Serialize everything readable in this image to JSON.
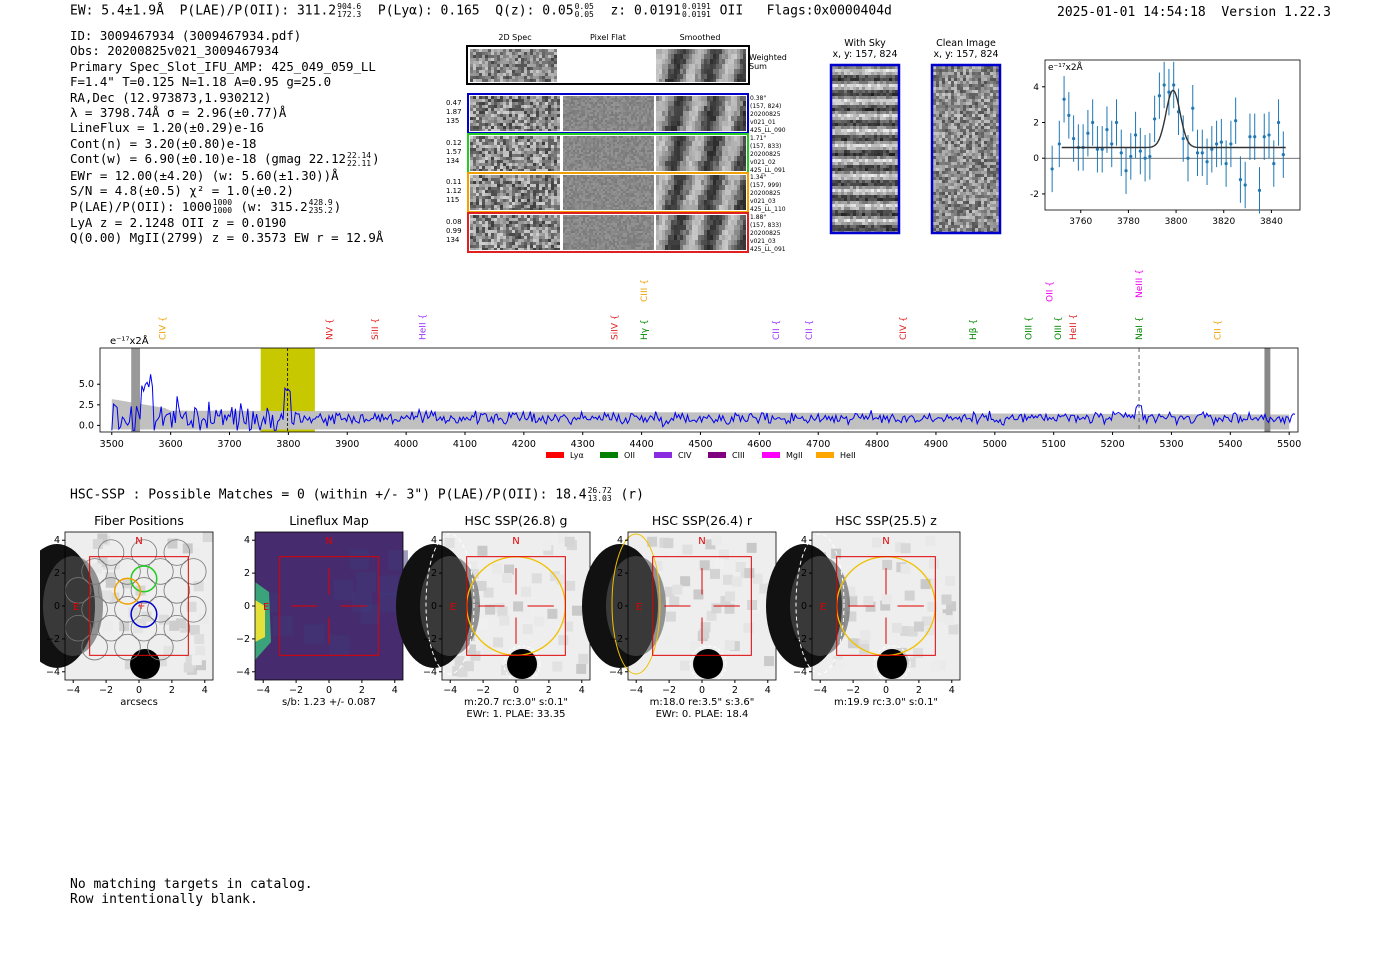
{
  "header": {
    "ew": "EW: 5.4±1.9Å",
    "plae_label": "P(LAE)/P(OII): 311.2",
    "plae_hi": "904.6",
    "plae_lo": "172.3",
    "plya": "P(Lyα): 0.165",
    "qz_label": "Q(z): 0.05",
    "qz_hi": "0.05",
    "qz_lo": "0.05",
    "z_label": "z: 0.0191",
    "z_hi": "0.0191",
    "z_lo": "0.0191",
    "z_line": "OII",
    "flags": "Flags:0x0000404d",
    "datetime": "2025-01-01 14:54:18",
    "version": "Version 1.22.3"
  },
  "info": {
    "id": "ID: 3009467934 (3009467934.pdf)",
    "obs": "Obs: 20200825v021_3009467934",
    "primary": "Primary Spec_Slot_IFU_AMP: 425_049_059_LL",
    "fit": "F=1.4\"  T=0.125  N=1.18  A=0.95  g=25.0",
    "radec": "RA,Dec (12.973873,1.930212)",
    "lambda": "λ = 3798.74Å  σ = 2.96(±0.77)Å",
    "lineflux": "LineFlux = 1.20(±0.29)e-16",
    "contn": "Cont(n) = 3.20(±0.80)e-18",
    "contw": "Cont(w) = 6.90(±0.10)e-18 (gmag 22.12",
    "gmag_hi": "22.14",
    "gmag_lo": "22.11",
    "ewr": "EWr = 12.00(±4.20) (w: 5.60(±1.30))Å",
    "sn": "S/N = 4.8(±0.5)  χ² = 1.0(±0.2)",
    "plae": "P(LAE)/P(OII): 1000",
    "plae_hi": "1000",
    "plae_lo": "1000",
    "plae_w": "(w: 315.2",
    "plae_w_hi": "428.9",
    "plae_w_lo": "235.2",
    "lya": "LyA z = 2.1248  OII z = 0.0190",
    "q": "Q(0.00) MgII(2799) z = 0.3573  EW r = 12.9Å"
  },
  "cutouts": {
    "col_2d": "2D Spec",
    "col_flat": "Pixel Flat",
    "col_smooth": "Smoothed",
    "weighted": "Weighted Sum",
    "rows": [
      {
        "left": [
          "0.47",
          "1.87",
          "135"
        ],
        "right": [
          "0.38\"",
          "(157, 824)",
          "20200825",
          "v021_01",
          "425_LL_090"
        ],
        "color": "#0000cc"
      },
      {
        "left": [
          "0.12",
          "1.57",
          "134"
        ],
        "right": [
          "1.71\"",
          "(157, 833)",
          "20200825",
          "v021_02",
          "425_LL_091"
        ],
        "color": "#22cc22"
      },
      {
        "left": [
          "0.11",
          "1.12",
          "115"
        ],
        "right": [
          "1.34\"",
          "(157, 999)",
          "20200825",
          "v021_03",
          "425_LL_110"
        ],
        "color": "#f0a000"
      },
      {
        "left": [
          "0.08",
          "0.99",
          "134"
        ],
        "right": [
          "1.88\"",
          "(157, 833)",
          "20200825",
          "v021_03",
          "425_LL_091"
        ],
        "color": "#e02020"
      }
    ]
  },
  "sky": {
    "with_sky_title": "With Sky",
    "with_sky_xy": "x, y: 157, 824",
    "clean_title": "Clean Image",
    "clean_xy": "x, y: 157, 824"
  },
  "zoom_chart": {
    "type": "scatter",
    "ylabel": "e⁻¹⁷x2Å",
    "xlim": [
      3745,
      3852
    ],
    "ylim": [
      -2.9,
      5.5
    ],
    "xticks": [
      3760,
      3780,
      3800,
      3820,
      3840
    ],
    "yticks": [
      -2,
      0,
      2,
      4
    ],
    "x": [
      3748,
      3751,
      3753,
      3755,
      3757,
      3759,
      3761,
      3763,
      3765,
      3767,
      3769,
      3771,
      3773,
      3775,
      3777,
      3779,
      3781,
      3783,
      3785,
      3787,
      3789,
      3791,
      3793,
      3795,
      3797,
      3799,
      3801,
      3803,
      3805,
      3807,
      3809,
      3811,
      3813,
      3815,
      3817,
      3819,
      3821,
      3823,
      3825,
      3827,
      3829,
      3831,
      3833,
      3835,
      3837,
      3839,
      3841,
      3843,
      3845
    ],
    "y": [
      -0.6,
      0.8,
      3.3,
      2.4,
      1.1,
      0.6,
      0.6,
      1.4,
      2.0,
      0.5,
      0.5,
      1.6,
      0.8,
      2.0,
      0.3,
      -0.7,
      0.1,
      1.3,
      0.4,
      0.0,
      0.1,
      2.2,
      3.5,
      4.1,
      3.7,
      4.1,
      2.6,
      1.1,
      0.0,
      2.8,
      0.3,
      0.3,
      -0.2,
      0.5,
      0.8,
      0.9,
      -0.3,
      0.8,
      2.1,
      -1.2,
      -1.5,
      1.2,
      1.2,
      -1.8,
      1.2,
      1.3,
      -0.3,
      2.0,
      0.2
    ],
    "err": 1.3,
    "fit": {
      "center": 3798.74,
      "sigma": 2.96,
      "amp": 3.2,
      "continuum": 0.6
    }
  },
  "chart_data": {
    "type": "line",
    "title": "",
    "ylabel": "e⁻¹⁷x2Å",
    "xlabel": "",
    "xlim": [
      3480,
      5515
    ],
    "ylim": [
      -0.8,
      9.4
    ],
    "xticks": [
      3500,
      3600,
      3700,
      3800,
      3900,
      4000,
      4100,
      4200,
      4300,
      4400,
      4500,
      4600,
      4700,
      4800,
      4900,
      5000,
      5100,
      5200,
      5300,
      5400,
      5500
    ],
    "yticks": [
      0.0,
      2.5,
      5.0
    ],
    "emission_window": [
      3753,
      3845
    ],
    "line_center": 3798.74,
    "nai_marker": 5245,
    "series_note": "flux density spectrum (blue) over noise envelope (grey)",
    "lines": [
      {
        "name": "CIV",
        "wave": 3586,
        "color": "#f0a000",
        "tier": 1
      },
      {
        "name": "NV",
        "wave": 3870,
        "color": "#e02020",
        "tier": 1
      },
      {
        "name": "SiII",
        "wave": 3947,
        "color": "#e02020",
        "tier": 1
      },
      {
        "name": "HeII",
        "wave": 4028,
        "color": "#9933ff",
        "tier": 1
      },
      {
        "name": "SiIV",
        "wave": 4354,
        "color": "#e02020",
        "tier": 1
      },
      {
        "name": "CIII",
        "wave": 4404,
        "color": "#f0a000",
        "tier": 2
      },
      {
        "name": "Hγ",
        "wave": 4404,
        "color": "#008800",
        "tier": 1
      },
      {
        "name": "CII",
        "wave": 4628,
        "color": "#9933ff",
        "tier": 1
      },
      {
        "name": "CII",
        "wave": 4684,
        "color": "#9933ff",
        "tier": 1
      },
      {
        "name": "CIV",
        "wave": 4844,
        "color": "#e02020",
        "tier": 1
      },
      {
        "name": "Hβ",
        "wave": 4963,
        "color": "#008800",
        "tier": 1
      },
      {
        "name": "OIII",
        "wave": 5057,
        "color": "#008800",
        "tier": 1
      },
      {
        "name": "OII",
        "wave": 5093,
        "color": "#ee00ee",
        "tier": 2
      },
      {
        "name": "OIII",
        "wave": 5107,
        "color": "#008800",
        "tier": 1
      },
      {
        "name": "HeII",
        "wave": 5133,
        "color": "#e02020",
        "tier": 1
      },
      {
        "name": "NeIII",
        "wave": 5245,
        "color": "#ee00ee",
        "tier": 3
      },
      {
        "name": "NaI",
        "wave": 5245,
        "color": "#008800",
        "tier": 1
      },
      {
        "name": "CII",
        "wave": 5378,
        "color": "#f0a000",
        "tier": 1
      }
    ],
    "legend": [
      {
        "label": "Lyα",
        "color": "#ff0000"
      },
      {
        "label": "OII",
        "color": "#008000"
      },
      {
        "label": "CIV",
        "color": "#8a2be2"
      },
      {
        "label": "CIII",
        "color": "#800080"
      },
      {
        "label": "MgII",
        "color": "#ff00ff"
      },
      {
        "label": "HeII",
        "color": "#ffa500"
      }
    ]
  },
  "hsc": {
    "title": "HSC-SSP : Possible Matches = 0 (within +/- 3\")  P(LAE)/P(OII): 18.4",
    "plae_hi": "26.72",
    "plae_lo": "13.03",
    "band": "(r)",
    "ticks": [
      "-4",
      "-2",
      "0",
      "2",
      "4"
    ],
    "panels": [
      {
        "title": "Fiber Positions",
        "cap1": "arcsecs",
        "cap2": ""
      },
      {
        "title": "Lineflux Map",
        "cap1": "s/b: 1.23 +/- 0.087",
        "cap2": ""
      },
      {
        "title": "HSC SSP(26.8) g",
        "cap1": "m:20.7 rc:3.0\"  s:0.1\"",
        "cap2": "EWr: 1. PLAE: 33.35"
      },
      {
        "title": "HSC SSP(26.4) r",
        "cap1": "m:18.0  re:3.5\"  s:3.6\"",
        "cap2": "EWr: 0. PLAE: 18.4"
      },
      {
        "title": "HSC SSP(25.5) z",
        "cap1": "m:19.9 rc:3.0\"  s:0.1\"",
        "cap2": ""
      }
    ],
    "north": "N",
    "east": "E"
  },
  "footer": {
    "line1": "No matching targets in catalog.",
    "line2": "Row intentionally blank."
  }
}
